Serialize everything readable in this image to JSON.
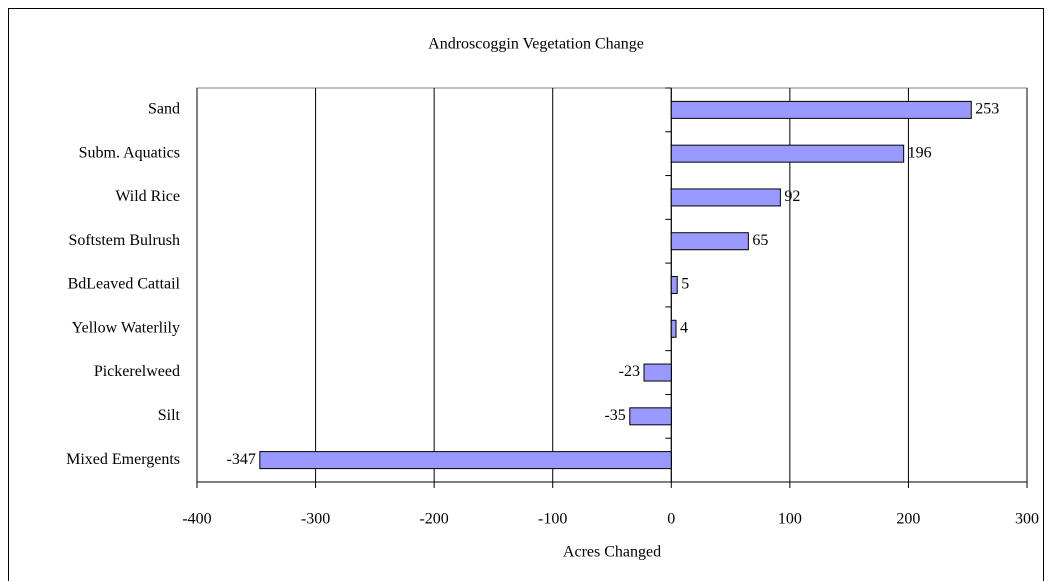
{
  "chart_data": {
    "type": "hbar",
    "title": "Androscoggin Vegetation Change",
    "x_label": "Acres Changed",
    "categories": [
      "Sand",
      "Subm. Aquatics",
      "Wild Rice",
      "Softstem Bulrush",
      "BdLeaved Cattail",
      "Yellow Waterlily",
      "Pickerelweed",
      "Silt",
      "Mixed Emergents"
    ],
    "values": [
      253,
      196,
      92,
      65,
      5,
      4,
      -23,
      -35,
      -347
    ],
    "color": "#9999ff",
    "xlim": [
      -400,
      300
    ],
    "xticks": [
      -400,
      -300,
      -200,
      -100,
      0,
      100,
      200,
      300
    ],
    "grid": true
  }
}
